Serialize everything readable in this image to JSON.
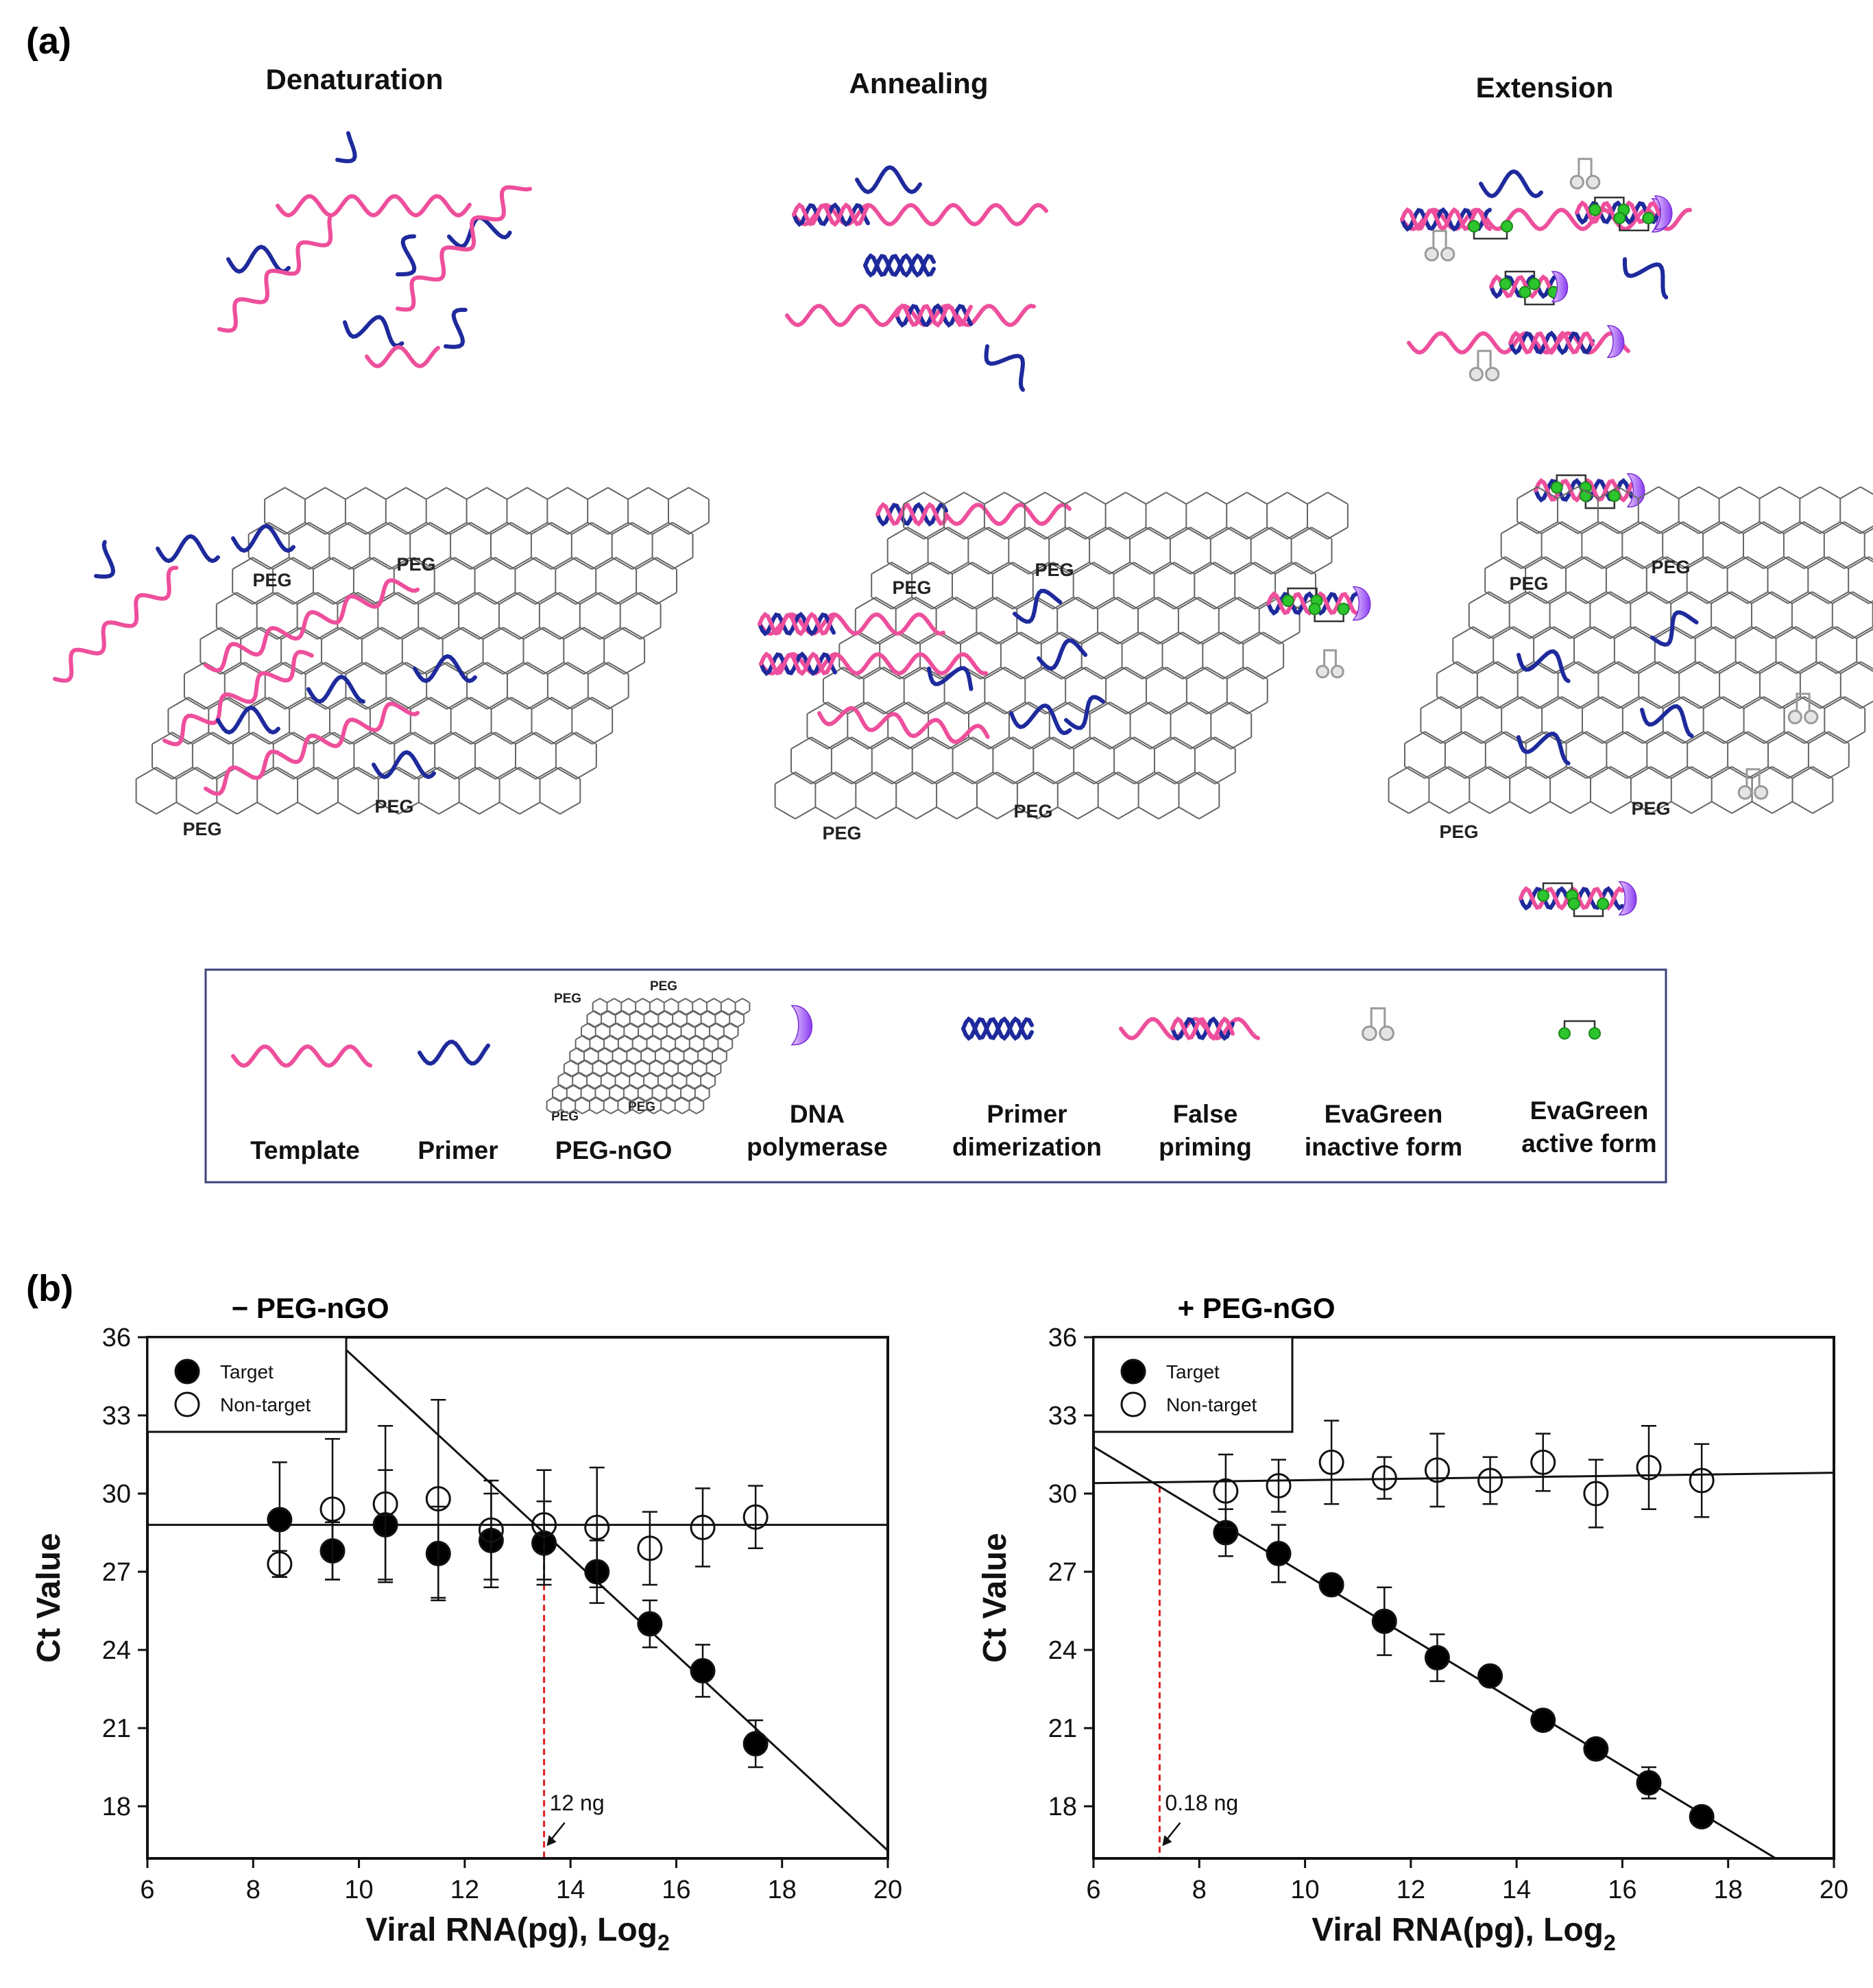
{
  "panel_a": {
    "label": "(a)",
    "stage_titles": [
      "Denaturation",
      "Annealing",
      "Extension"
    ],
    "peg_label": "PEG",
    "legend": [
      {
        "name": "template",
        "lines": [
          "Template"
        ]
      },
      {
        "name": "primer",
        "lines": [
          "Primer"
        ]
      },
      {
        "name": "peg-ngo",
        "lines": [
          "PEG-nGO"
        ]
      },
      {
        "name": "dna-polymerase",
        "lines": [
          "DNA",
          "polymerase"
        ]
      },
      {
        "name": "primer-dimerization",
        "lines": [
          "Primer",
          "dimerization"
        ]
      },
      {
        "name": "false-priming",
        "lines": [
          "False",
          "priming"
        ]
      },
      {
        "name": "evagreen-inactive",
        "lines": [
          "EvaGreen",
          "inactive form"
        ]
      },
      {
        "name": "evagreen-active",
        "lines": [
          "EvaGreen",
          "active form"
        ]
      }
    ]
  },
  "panel_b": {
    "label": "(b)"
  },
  "colors": {
    "template": "#ee4f9c",
    "primer": "#1e2a9c",
    "polymerase": "#a24ef0",
    "evagreen_active": "#2dc52d",
    "evagreen_inactive": "#9a9a9a",
    "threshold": "#e02020",
    "sheet": "#666666"
  },
  "chart_data": [
    {
      "type": "scatter",
      "title": "− PEG-nGO",
      "xlabel": "Viral RNA(pg), Log",
      "xlabel_sub": "2",
      "ylabel": "Ct Value",
      "xlim": [
        6,
        20
      ],
      "ylim": [
        16,
        36
      ],
      "xticks": [
        6,
        8,
        10,
        12,
        14,
        16,
        18,
        20
      ],
      "yticks": [
        18,
        21,
        24,
        27,
        30,
        33,
        36
      ],
      "legend_position": "top-left",
      "series": [
        {
          "name": "Target",
          "marker": "filled-circle",
          "x": [
            8.5,
            9.5,
            10.5,
            11.5,
            12.5,
            13.5,
            14.5,
            15.5,
            16.5,
            17.5
          ],
          "y": [
            29.0,
            27.8,
            28.8,
            27.7,
            28.2,
            28.1,
            27.0,
            25.0,
            23.2,
            20.4
          ],
          "err": [
            2.2,
            1.1,
            2.1,
            1.8,
            1.8,
            1.6,
            1.2,
            0.9,
            1.0,
            0.9
          ]
        },
        {
          "name": "Non-target",
          "marker": "open-circle",
          "x": [
            8.5,
            9.5,
            10.5,
            11.5,
            12.5,
            13.5,
            14.5,
            15.5,
            16.5,
            17.5
          ],
          "y": [
            27.3,
            29.4,
            29.6,
            29.8,
            28.6,
            28.8,
            28.7,
            27.9,
            28.7,
            29.1
          ],
          "err": [
            0.5,
            2.7,
            3.0,
            3.8,
            1.9,
            2.1,
            2.3,
            1.4,
            1.5,
            1.2
          ]
        }
      ],
      "fit_lines": [
        {
          "name": "target-fit",
          "x": [
            9.5,
            20
          ],
          "y": [
            36,
            16.3
          ]
        },
        {
          "name": "non-target-fit",
          "x": [
            6,
            20
          ],
          "y": [
            28.8,
            28.8
          ]
        }
      ],
      "threshold": {
        "x": 13.5,
        "label": "12 ng"
      }
    },
    {
      "type": "scatter",
      "title": "+ PEG-nGO",
      "xlabel": "Viral RNA(pg), Log",
      "xlabel_sub": "2",
      "ylabel": "Ct Value",
      "xlim": [
        6,
        20
      ],
      "ylim": [
        16,
        36
      ],
      "xticks": [
        6,
        8,
        10,
        12,
        14,
        16,
        18,
        20
      ],
      "yticks": [
        18,
        21,
        24,
        27,
        30,
        33,
        36
      ],
      "legend_position": "top-left",
      "series": [
        {
          "name": "Target",
          "marker": "filled-circle",
          "x": [
            8.5,
            9.5,
            10.5,
            11.5,
            12.5,
            13.5,
            14.5,
            15.5,
            16.5,
            17.5
          ],
          "y": [
            28.5,
            27.7,
            26.5,
            25.1,
            23.7,
            23.0,
            21.3,
            20.2,
            18.9,
            17.6
          ],
          "err": [
            0.9,
            1.1,
            0.3,
            1.3,
            0.9,
            0.3,
            0.3,
            0.3,
            0.6,
            0.2
          ]
        },
        {
          "name": "Non-target",
          "marker": "open-circle",
          "x": [
            8.5,
            9.5,
            10.5,
            11.5,
            12.5,
            13.5,
            14.5,
            15.5,
            16.5,
            17.5
          ],
          "y": [
            30.1,
            30.3,
            31.2,
            30.6,
            30.9,
            30.5,
            31.2,
            30.0,
            31.0,
            30.5
          ],
          "err": [
            1.4,
            1.0,
            1.6,
            0.8,
            1.4,
            0.9,
            1.1,
            1.3,
            1.6,
            1.4
          ]
        }
      ],
      "fit_lines": [
        {
          "name": "target-fit",
          "x": [
            6,
            18.9
          ],
          "y": [
            31.8,
            16
          ]
        },
        {
          "name": "non-target-fit",
          "x": [
            6,
            20
          ],
          "y": [
            30.4,
            30.8
          ]
        }
      ],
      "threshold": {
        "x": 7.25,
        "label": "0.18 ng"
      }
    }
  ]
}
